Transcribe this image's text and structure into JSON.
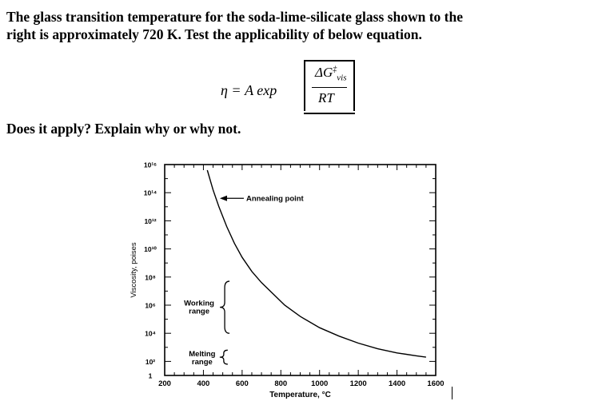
{
  "question": {
    "line1": "The glass transition temperature for the soda-lime-silicate glass shown to the",
    "line2": "right is approximately 720 K. Test the applicability of below equation.",
    "ask": "Does it apply? Explain why or why not."
  },
  "equation": {
    "lhs": "η = A exp",
    "numerator_main": "ΔG",
    "numerator_sub": "vis",
    "numerator_sup": "‡",
    "denominator": "RT"
  },
  "chart_data": {
    "type": "line",
    "title": "",
    "xlabel": "Temperature, °C",
    "ylabel": "Viscosity, poises",
    "xlim": [
      200,
      1600
    ],
    "ylim": [
      1,
      16
    ],
    "y_scale": "log10 of viscosity in poises",
    "x_ticks": [
      "200",
      "400",
      "600",
      "800",
      "1000",
      "1200",
      "1400",
      "1600"
    ],
    "y_ticks": [
      {
        "value": 1,
        "label": "1"
      },
      {
        "value": 2,
        "label": "10²"
      },
      {
        "value": 4,
        "label": "10⁴"
      },
      {
        "value": 6,
        "label": "10⁶"
      },
      {
        "value": 8,
        "label": "10⁸"
      },
      {
        "value": 10,
        "label": "10¹⁰"
      },
      {
        "value": 12,
        "label": "10¹²"
      },
      {
        "value": 14,
        "label": "10¹⁴"
      },
      {
        "value": 16,
        "label": "10¹⁶"
      }
    ],
    "series": [
      {
        "points": [
          [
            420,
            15.6
          ],
          [
            450,
            14.2
          ],
          [
            480,
            13.0
          ],
          [
            520,
            11.6
          ],
          [
            560,
            10.4
          ],
          [
            600,
            9.4
          ],
          [
            650,
            8.4
          ],
          [
            700,
            7.6
          ],
          [
            760,
            6.8
          ],
          [
            820,
            6.0
          ],
          [
            900,
            5.2
          ],
          [
            1000,
            4.4
          ],
          [
            1100,
            3.8
          ],
          [
            1200,
            3.3
          ],
          [
            1300,
            2.9
          ],
          [
            1400,
            2.6
          ],
          [
            1500,
            2.4
          ],
          [
            1550,
            2.3
          ]
        ]
      }
    ],
    "annotations": {
      "annealing_point": {
        "label": "Annealing point",
        "x": 460,
        "y": 13.6
      },
      "working_range": {
        "label_line1": "Working",
        "label_line2": "range",
        "y_range": [
          4,
          7.7
        ]
      },
      "melting_range": {
        "label_line1": "Melting",
        "label_line2": "range",
        "y_range": [
          1.8,
          2.8
        ]
      }
    },
    "grid": false,
    "minor_ticks_x": 50,
    "minor_ticks_y": 1
  }
}
